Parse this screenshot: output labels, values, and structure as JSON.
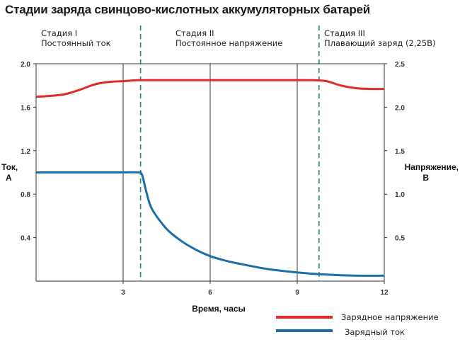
{
  "title": "Стадии заряда свинцово-кислотных аккумуляторных батарей",
  "stages": [
    {
      "label": "Стадия I",
      "desc": "Постоянный ток"
    },
    {
      "label": "Стадия II",
      "desc": "Постоянное напряжение"
    },
    {
      "label": "Стадия III",
      "desc": "Плавающий заряд (2,25В)"
    }
  ],
  "colors": {
    "voltage": "#e02b2b",
    "current": "#1b6fa8",
    "divider": "#2e7d7a",
    "grid": "#333333"
  },
  "chart_data": {
    "type": "line",
    "xlabel": "Время, часы",
    "ylabel_left": [
      "Ток,",
      "А"
    ],
    "ylabel_right": [
      "Напряжение,",
      "В"
    ],
    "xlim": [
      0,
      12
    ],
    "ylim_left": [
      0,
      2.0
    ],
    "ylim_right": [
      0,
      2.5
    ],
    "x_ticks": [
      "3",
      "6",
      "9",
      "12"
    ],
    "y_ticks_left": [
      "2.0",
      "1.6",
      "1.2",
      "0.8",
      "0.4"
    ],
    "y_ticks_right": [
      "2.5",
      "2.0",
      "1.5",
      "1.0",
      "0.5"
    ],
    "stage_boundaries": [
      3.6,
      9.75
    ],
    "series": [
      {
        "name": "Зарядное напряжение",
        "axis": "right",
        "x": [
          0,
          0.5,
          1,
          1.5,
          2,
          2.5,
          3,
          3.5,
          4,
          5,
          6,
          7,
          8,
          9,
          9.5,
          10,
          10.5,
          11,
          11.5,
          12
        ],
        "y": [
          2.12,
          2.13,
          2.15,
          2.2,
          2.26,
          2.29,
          2.3,
          2.31,
          2.31,
          2.31,
          2.31,
          2.31,
          2.31,
          2.31,
          2.31,
          2.3,
          2.25,
          2.22,
          2.21,
          2.21
        ]
      },
      {
        "name": "Зарядный ток",
        "axis": "left",
        "x": [
          0,
          1,
          2,
          3,
          3.5,
          3.65,
          3.8,
          4,
          4.5,
          5,
          5.5,
          6,
          6.5,
          7,
          8,
          9,
          10,
          11,
          12
        ],
        "y": [
          1.0,
          1.0,
          1.0,
          1.0,
          1.0,
          0.98,
          0.82,
          0.66,
          0.48,
          0.37,
          0.29,
          0.23,
          0.19,
          0.16,
          0.11,
          0.08,
          0.06,
          0.05,
          0.05
        ]
      }
    ],
    "legend": {
      "position": "bottom-right"
    }
  }
}
